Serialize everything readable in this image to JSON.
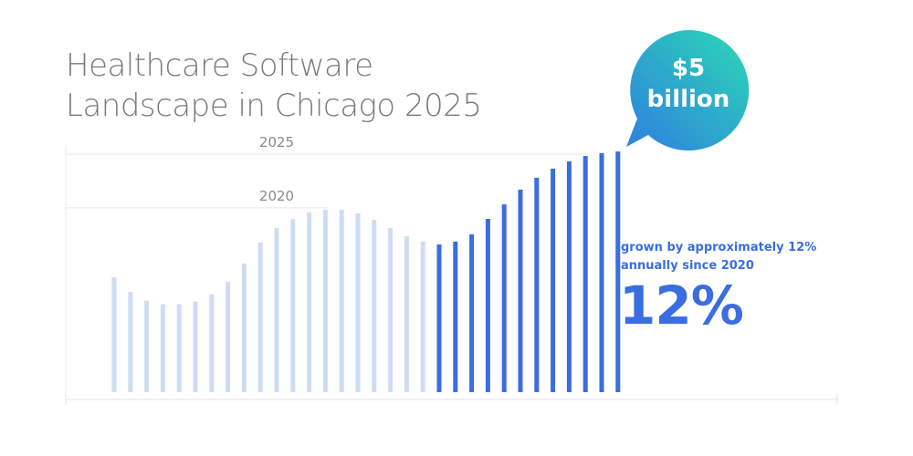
{
  "title": {
    "line1": "Healthcare Software",
    "line2": "Landscape in Chicago 2025"
  },
  "bubble": {
    "line1": "$5",
    "line2": "billion",
    "gradient_start": "#2bd8b5",
    "gradient_end": "#2f7fe0"
  },
  "growth": {
    "line1": "grown by approximately 12%",
    "line2": "annually since 2020",
    "percent": "12%",
    "color": "#3a6ddf"
  },
  "chart_data": {
    "type": "bar",
    "title": "Healthcare Software Landscape in Chicago 2025",
    "xlabel": "",
    "ylabel": "",
    "ylim": [
      0,
      100
    ],
    "grid": false,
    "annotations": [
      {
        "label": "2020",
        "at_bar": 13
      },
      {
        "label": "2025",
        "at_bar": 29
      }
    ],
    "colors": {
      "history": "#cfdcf6",
      "recent": "#3a6ddf"
    },
    "recent_from_index": 20,
    "values": [
      47.5,
      41.5,
      37.9,
      36.4,
      36.4,
      37.5,
      40.4,
      45.7,
      53.2,
      61.9,
      67.9,
      71.7,
      74.3,
      75.5,
      75.5,
      74.0,
      71.3,
      67.9,
      64.5,
      62.3,
      61.1,
      62.3,
      65.3,
      71.7,
      77.7,
      83.8,
      88.7,
      92.5,
      95.5,
      97.7,
      98.9,
      99.6
    ]
  }
}
